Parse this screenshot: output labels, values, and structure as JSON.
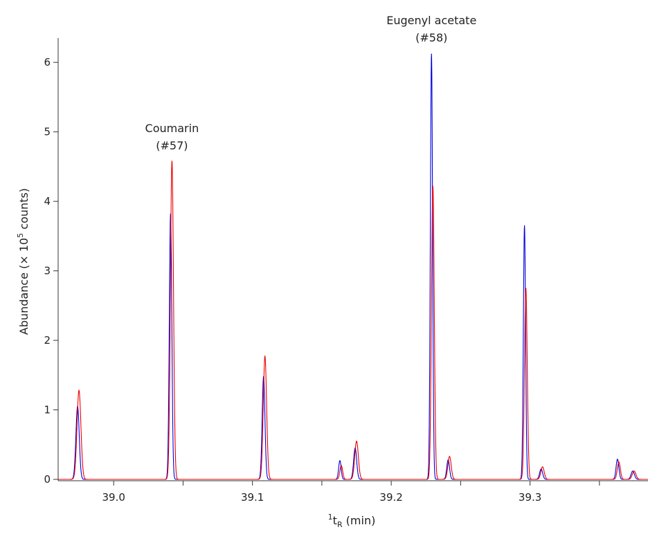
{
  "chart_data": {
    "type": "line",
    "title": "",
    "xlabel": {
      "sup": "1",
      "base": "t",
      "sub": "R",
      "unit": " (min)"
    },
    "ylabel": {
      "prefix": "Abundance (× 10",
      "sup": "5",
      "suffix": " counts)"
    },
    "xlim": [
      38.96,
      39.385
    ],
    "ylim": [
      -0.02,
      6.35
    ],
    "xticks": [
      39.0,
      39.1,
      39.2,
      39.3
    ],
    "xtick_labels": [
      "39.0",
      "39.1",
      "39.2",
      "39.3"
    ],
    "x_minor_ticks": [
      39.05,
      39.15,
      39.25,
      39.35
    ],
    "yticks": [
      0,
      1,
      2,
      3,
      4,
      5,
      6
    ],
    "ytick_labels": [
      "0",
      "1",
      "2",
      "3",
      "4",
      "5",
      "6"
    ],
    "grid": false,
    "legend": false,
    "annotations": [
      {
        "lines": [
          "Coumarin",
          "(#57)"
        ],
        "x": 39.042,
        "y": 4.75
      },
      {
        "lines": [
          "Eugenyl acetate",
          "(#58)"
        ],
        "x": 39.229,
        "y": 6.3
      }
    ],
    "series": [
      {
        "color": "#0000dd",
        "peaks": [
          {
            "rt": 38.974,
            "height": 1.05,
            "width": 0.0012
          },
          {
            "rt": 39.041,
            "height": 3.82,
            "width": 0.0009
          },
          {
            "rt": 39.108,
            "height": 1.48,
            "width": 0.001
          },
          {
            "rt": 39.163,
            "height": 0.27,
            "width": 0.0009
          },
          {
            "rt": 39.174,
            "height": 0.45,
            "width": 0.0011
          },
          {
            "rt": 39.229,
            "height": 6.12,
            "width": 0.0008
          },
          {
            "rt": 39.241,
            "height": 0.28,
            "width": 0.001
          },
          {
            "rt": 39.296,
            "height": 3.65,
            "width": 0.0008
          },
          {
            "rt": 39.308,
            "height": 0.15,
            "width": 0.0011
          },
          {
            "rt": 39.363,
            "height": 0.29,
            "width": 0.001
          },
          {
            "rt": 39.374,
            "height": 0.12,
            "width": 0.0012
          }
        ]
      },
      {
        "color": "#ee0000",
        "peaks": [
          {
            "rt": 38.975,
            "height": 1.28,
            "width": 0.0014
          },
          {
            "rt": 39.042,
            "height": 4.58,
            "width": 0.0011
          },
          {
            "rt": 39.109,
            "height": 1.77,
            "width": 0.0012
          },
          {
            "rt": 39.164,
            "height": 0.2,
            "width": 0.001
          },
          {
            "rt": 39.175,
            "height": 0.55,
            "width": 0.0013
          },
          {
            "rt": 39.23,
            "height": 4.22,
            "width": 0.001
          },
          {
            "rt": 39.242,
            "height": 0.33,
            "width": 0.0012
          },
          {
            "rt": 39.297,
            "height": 2.75,
            "width": 0.001
          },
          {
            "rt": 39.309,
            "height": 0.18,
            "width": 0.0012
          },
          {
            "rt": 39.364,
            "height": 0.25,
            "width": 0.0011
          },
          {
            "rt": 39.375,
            "height": 0.12,
            "width": 0.0013
          }
        ]
      }
    ]
  }
}
